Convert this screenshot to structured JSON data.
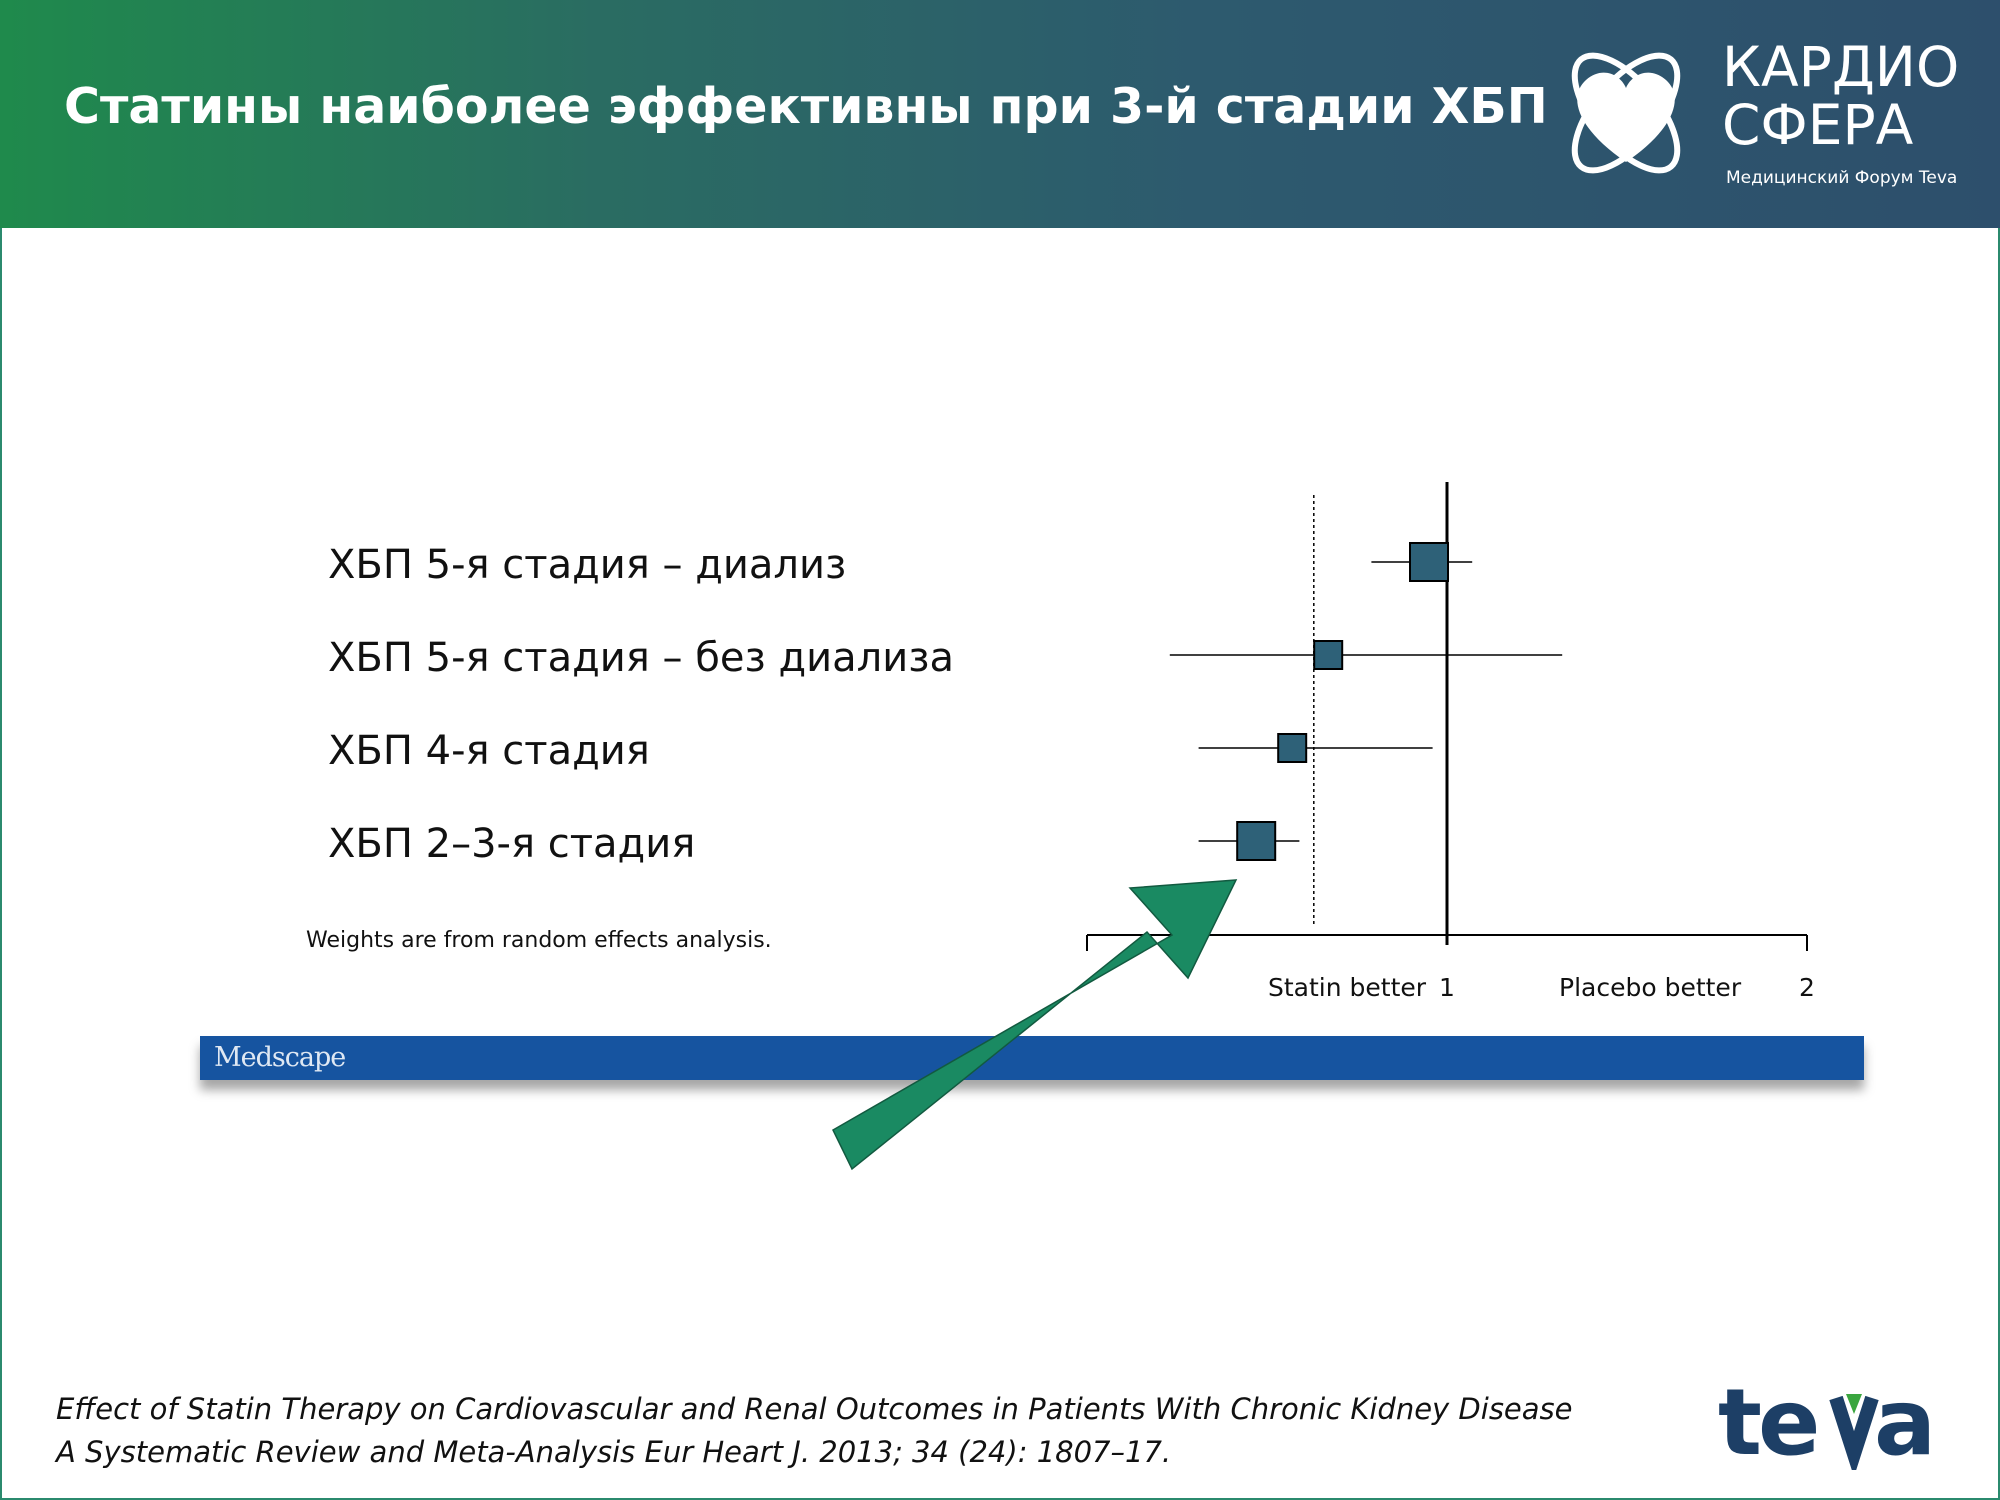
{
  "slide": {
    "title": "Статины наиболее эффективны при 3-й стадии ХБП",
    "brand_name": "КАРДИО\nСФЕРА",
    "brand_subtitle": "Медицинский Форум Teva",
    "weights_note": "Weights are from random effects analysis.",
    "medscape_label": "Medscape",
    "citation_line1": "Effect of Statin Therapy on Cardiovascular and Renal Outcomes in Patients With Chronic Kidney Disease",
    "citation_line2": "A Systematic Review and Meta-Analysis Eur Heart J. 2013; 34 (24): 1807–17.",
    "teva_label": "teva"
  },
  "colors": {
    "header_start": "#1f8a4c",
    "header_end": "#2d4f6c",
    "marker": "#2e6178",
    "arrow": "#1a8a62",
    "medscape_bar": "#1654a0"
  },
  "chart_data": {
    "type": "forest",
    "xlim": [
      0,
      2
    ],
    "x_ticks": [
      {
        "value": 1,
        "label": "1"
      },
      {
        "value": 2,
        "label": "2"
      }
    ],
    "x_side_labels": {
      "left": "Statin better",
      "right": "Placebo better"
    },
    "reference_line": 1,
    "pooled_dotted_line": 0.63,
    "rows": [
      {
        "label": "ХБП 5-я стадия – диализ",
        "estimate": 0.95,
        "ci_low": 0.79,
        "ci_high": 1.07,
        "weight": "large"
      },
      {
        "label": "ХБП 5-я стадия – без диализа",
        "estimate": 0.67,
        "ci_low": 0.23,
        "ci_high": 1.32,
        "weight": "small"
      },
      {
        "label": "ХБП 4-я стадия",
        "estimate": 0.57,
        "ci_low": 0.31,
        "ci_high": 0.96,
        "weight": "small"
      },
      {
        "label": "ХБП 2–3-я стадия",
        "estimate": 0.47,
        "ci_low": 0.31,
        "ci_high": 0.59,
        "weight": "large"
      }
    ]
  }
}
